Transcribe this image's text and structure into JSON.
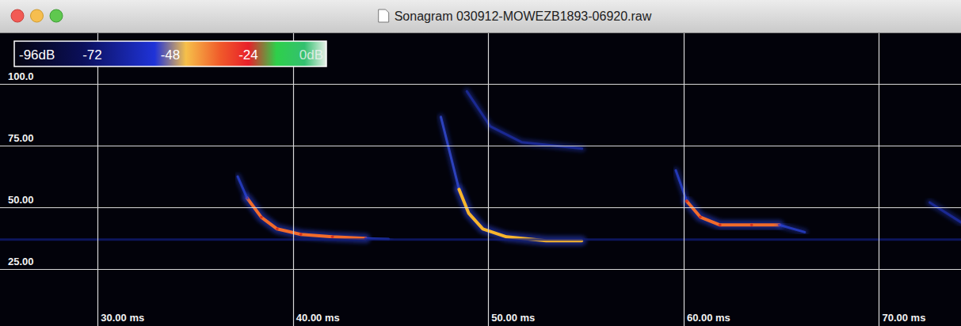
{
  "chart_data": {
    "type": "spectrogram",
    "title": "Sonagram 030912-MOWEZB1893-06920.raw",
    "xlim": [
      25,
      74.2
    ],
    "ylim": [
      2,
      120.5
    ],
    "xticks": [
      {
        "value": 30,
        "label": "30.00 ms"
      },
      {
        "value": 40,
        "label": "40.00 ms"
      },
      {
        "value": 50,
        "label": "50.00 ms"
      },
      {
        "value": 60,
        "label": "60.00 ms"
      },
      {
        "value": 70,
        "label": "70.00 ms"
      }
    ],
    "yticks": [
      {
        "value": 100,
        "label": "100.0"
      },
      {
        "value": 75,
        "label": "75.00"
      },
      {
        "value": 50,
        "label": "50.00"
      },
      {
        "value": 25,
        "label": "25.00"
      }
    ],
    "grid": true,
    "colorbar": {
      "range": [
        -96,
        0
      ],
      "ticks": [
        {
          "value": -96,
          "label": "-96dB"
        },
        -72,
        -48,
        -24,
        {
          "value": 0,
          "label": "0dB"
        }
      ]
    },
    "series": [
      {
        "color": "#f26b2a",
        "marker": "dot",
        "x": [
          37.65,
          38.38,
          39.19,
          40.4,
          42.02,
          43.72
        ],
        "values": [
          53.8,
          46.0,
          41.3,
          39.1,
          38.1,
          37.5
        ]
      },
      {
        "color": "#2a44d8",
        "x": [
          37.17,
          37.65
        ],
        "values": [
          62.5,
          53.8
        ]
      },
      {
        "color": "#2a44d8",
        "x": [
          43.72,
          44.9
        ],
        "values": [
          37.5,
          37.2
        ]
      },
      {
        "color": "#3550e0",
        "x": [
          47.57,
          48.1,
          48.5
        ],
        "values": [
          86.6,
          70,
          57.3
        ]
      },
      {
        "color": "#f7b52c",
        "x": [
          48.5,
          48.99,
          49.72,
          50.93,
          52.96,
          54.78
        ],
        "values": [
          57.3,
          47.7,
          41.3,
          38.1,
          36.5,
          36.5
        ]
      },
      {
        "color": "#1d2fa8",
        "x": [
          48.9,
          50.1,
          51.7,
          54.8
        ],
        "values": [
          97,
          82.8,
          76.4,
          73.8
        ]
      },
      {
        "color": "#2a44d8",
        "x": [
          59.6,
          60.16
        ],
        "values": [
          65,
          52.5
        ]
      },
      {
        "color": "#f26b2a",
        "marker": "dot",
        "x": [
          60.16,
          60.85,
          61.86,
          63.48,
          64.9
        ],
        "values": [
          52.5,
          46.1,
          42.9,
          42.9,
          42.9
        ]
      },
      {
        "color": "#2a44d8",
        "x": [
          64.9,
          66.2
        ],
        "values": [
          42.9,
          40
        ]
      },
      {
        "color": "#1d2fa8",
        "x": [
          72.6,
          74.2
        ],
        "values": [
          52,
          44
        ]
      },
      {
        "color": "#121e78",
        "x": [
          25,
          74.2
        ],
        "values": [
          37,
          37
        ]
      }
    ]
  }
}
